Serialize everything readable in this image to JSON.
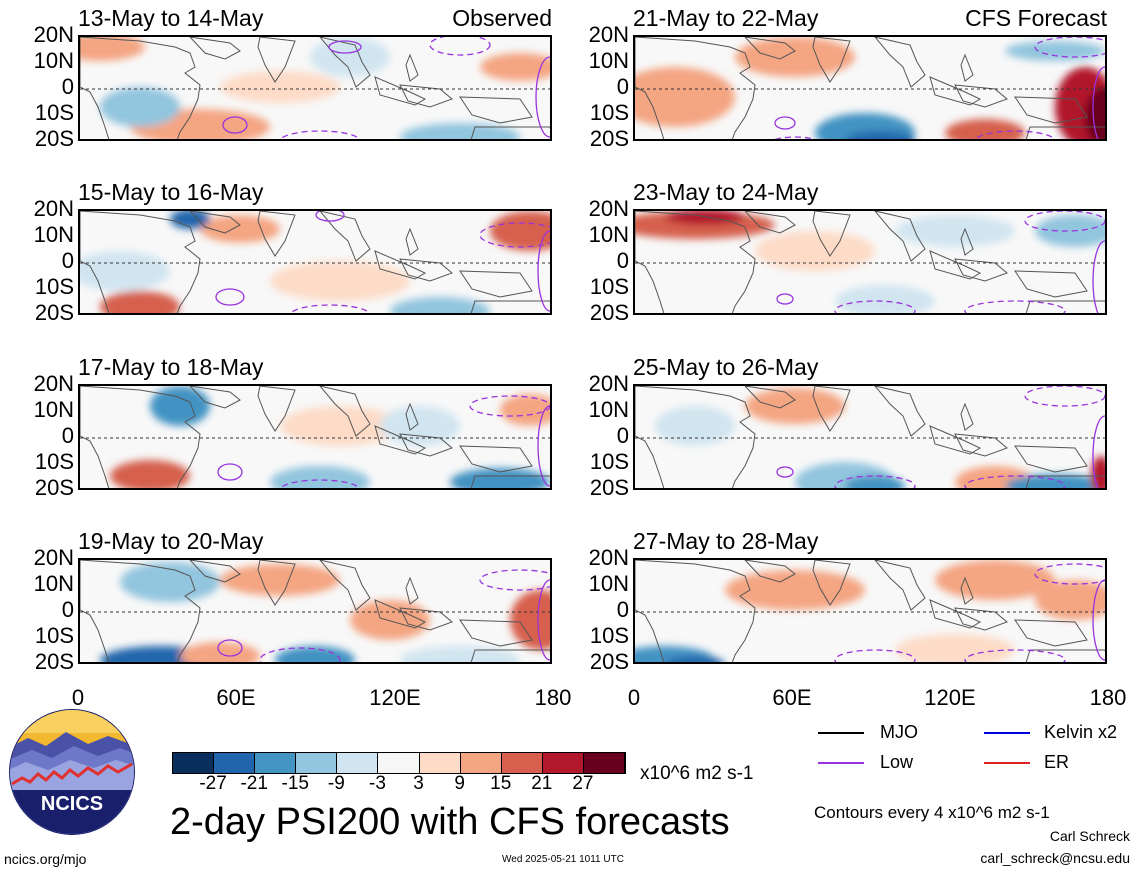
{
  "panels": [
    {
      "title": "13-May to 14-May",
      "tag": "Observed"
    },
    {
      "title": "21-May to 22-May",
      "tag": "CFS Forecast"
    },
    {
      "title": "15-May to 16-May",
      "tag": ""
    },
    {
      "title": "23-May to 24-May",
      "tag": ""
    },
    {
      "title": "17-May to 18-May",
      "tag": ""
    },
    {
      "title": "25-May to 26-May",
      "tag": ""
    },
    {
      "title": "19-May to 20-May",
      "tag": ""
    },
    {
      "title": "27-May to 28-May",
      "tag": ""
    }
  ],
  "lat_labels": [
    "20N",
    "10N",
    "0",
    "10S",
    "20S"
  ],
  "lon_labels": [
    "0",
    "60E",
    "120E",
    "180"
  ],
  "colorbar": {
    "colors": [
      "#0a2f5c",
      "#2166ac",
      "#4393c3",
      "#92c5de",
      "#d1e5f0",
      "#f7f7f7",
      "#fddbc7",
      "#f4a582",
      "#d6604d",
      "#b2182b",
      "#67001f"
    ],
    "labels": [
      "-27",
      "-21",
      "-15",
      "-9",
      "-3",
      "3",
      "9",
      "15",
      "21",
      "27"
    ],
    "units": "x10^6 m2 s-1"
  },
  "legend": {
    "items": [
      {
        "label": "MJO",
        "color": "#000000"
      },
      {
        "label": "Kelvin x2",
        "color": "#0000dd"
      },
      {
        "label": "Low",
        "color": "#9933dd"
      },
      {
        "label": "ER",
        "color": "#dd2222"
      }
    ],
    "contour_note": "Contours every 4 x10^6 m2 s-1"
  },
  "main_title": "2-day PSI200 with CFS forecasts",
  "logo_text": "NCICS",
  "footer": {
    "url": "ncics.org/mjo",
    "timestamp": "Wed 2025-05-21 1011 UTC",
    "author": "Carl Schreck",
    "email": "carl_schreck@ncsu.edu"
  }
}
